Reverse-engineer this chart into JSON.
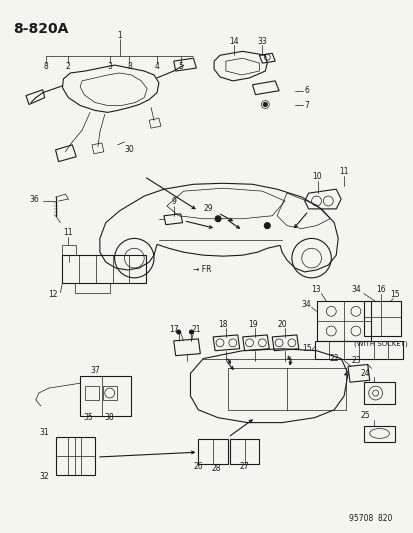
{
  "title": "8-820A",
  "footer": "95708  820",
  "bg_color": "#f5f5f0",
  "fg_color": "#1a1a1a",
  "fig_width": 4.14,
  "fig_height": 5.33,
  "dpi": 100,
  "border_color": "#cccccc"
}
